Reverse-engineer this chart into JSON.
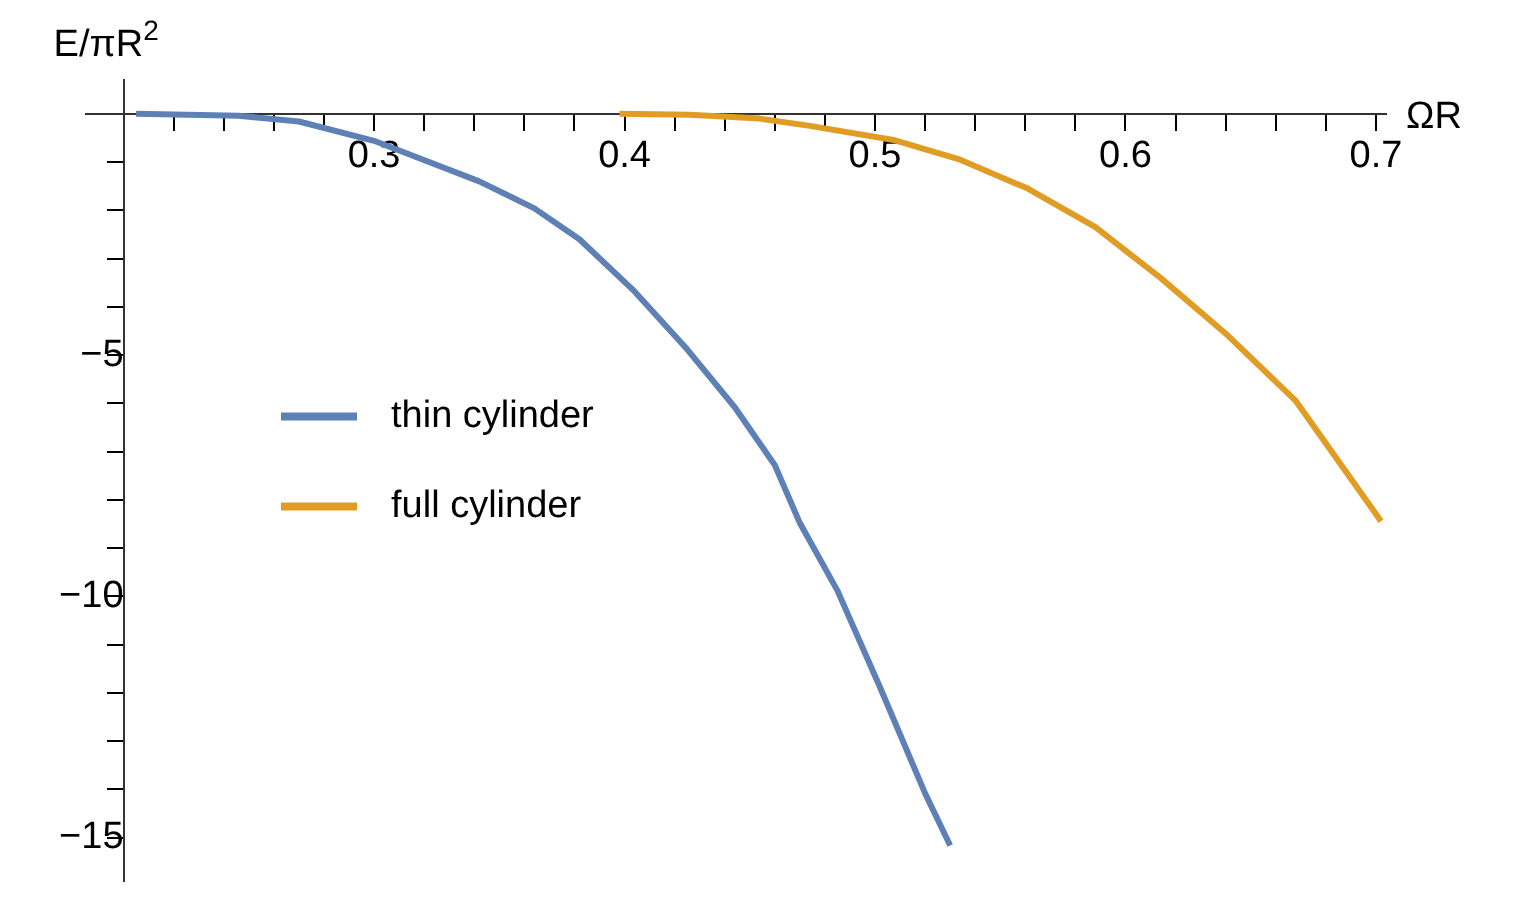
{
  "chart_data": {
    "type": "line",
    "xlabel": "ΩR",
    "ylabel": "E/πR$^{2}$",
    "xlim": [
      0.185,
      0.704
    ],
    "ylim": [
      -15.9,
      0.7
    ],
    "xticks": [
      {
        "value": 0.2,
        "label": null
      },
      {
        "value": 0.22,
        "label": null
      },
      {
        "value": 0.24,
        "label": null
      },
      {
        "value": 0.26,
        "label": null
      },
      {
        "value": 0.28,
        "label": null
      },
      0.3,
      {
        "value": 0.32,
        "label": null
      },
      {
        "value": 0.34,
        "label": null
      },
      {
        "value": 0.36,
        "label": null
      },
      {
        "value": 0.38,
        "label": null
      },
      0.4,
      {
        "value": 0.42,
        "label": null
      },
      {
        "value": 0.44,
        "label": null
      },
      {
        "value": 0.46,
        "label": null
      },
      {
        "value": 0.48,
        "label": null
      },
      0.5,
      {
        "value": 0.52,
        "label": null
      },
      {
        "value": 0.54,
        "label": null
      },
      {
        "value": 0.56,
        "label": null
      },
      {
        "value": 0.58,
        "label": null
      },
      0.6,
      {
        "value": 0.62,
        "label": null
      },
      {
        "value": 0.64,
        "label": null
      },
      {
        "value": 0.66,
        "label": null
      },
      {
        "value": 0.68,
        "label": null
      },
      0.7
    ],
    "yticks": [
      {
        "value": -1,
        "label": null
      },
      {
        "value": -2,
        "label": null
      },
      {
        "value": -3,
        "label": null
      },
      {
        "value": -4,
        "label": null
      },
      {
        "value": -5,
        "label": "−5"
      },
      {
        "value": -6,
        "label": null
      },
      {
        "value": -7,
        "label": null
      },
      {
        "value": -8,
        "label": null
      },
      {
        "value": -9,
        "label": null
      },
      {
        "value": -10,
        "label": "−10"
      },
      {
        "value": -11,
        "label": null
      },
      {
        "value": -12,
        "label": null
      },
      {
        "value": -13,
        "label": null
      },
      {
        "value": -14,
        "label": null
      },
      {
        "value": -15,
        "label": "−15"
      }
    ],
    "grid": false,
    "legend": "left",
    "marker": "none",
    "line_style": "solid",
    "series": [
      {
        "name": "thin cylinder",
        "color": "#5e81b5",
        "x": [
          0.205,
          0.246,
          0.27,
          0.3,
          0.316,
          0.342,
          0.364,
          0.382,
          0.404,
          0.425,
          0.444,
          0.46,
          0.47,
          0.485,
          0.502,
          0.52,
          0.53
        ],
        "values": [
          0,
          -0.04,
          -0.16,
          -0.56,
          -0.88,
          -1.4,
          -1.96,
          -2.6,
          -3.68,
          -4.88,
          -6.08,
          -7.28,
          -8.48,
          -9.88,
          -11.88,
          -14.08,
          -15.16
        ]
      },
      {
        "name": "full cylinder",
        "color": "#e19c24",
        "x": [
          0.398,
          0.426,
          0.454,
          0.474,
          0.508,
          0.534,
          0.561,
          0.588,
          0.614,
          0.641,
          0.668,
          0.702
        ],
        "values": [
          0,
          -0.02,
          -0.1,
          -0.25,
          -0.55,
          -0.95,
          -1.55,
          -2.35,
          -3.4,
          -4.6,
          -5.95,
          -8.44
        ]
      }
    ]
  }
}
